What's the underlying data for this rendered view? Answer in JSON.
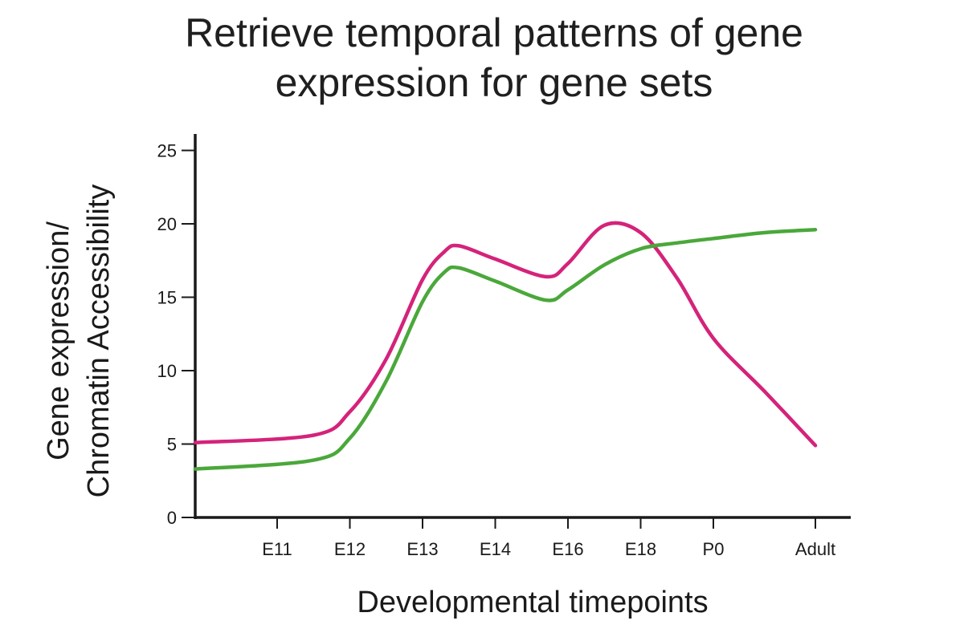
{
  "chart_data": {
    "type": "line",
    "title_lines": [
      "Retrieve temporal patterns of gene",
      "expression for gene sets"
    ],
    "xlabel": "Developmental timepoints",
    "ylabel_lines": [
      "Gene expression/",
      "Chromatin Accessibility"
    ],
    "categories": [
      "E11",
      "E12",
      "E13",
      "E14",
      "E16",
      "E18",
      "P0",
      "Adult"
    ],
    "y_ticks": [
      0,
      5,
      10,
      15,
      20,
      25
    ],
    "ylim": [
      0,
      27
    ],
    "grid": false,
    "legend": "none",
    "series": [
      {
        "color": "#d4237a",
        "x": [
          0,
          0.5,
          1,
          1.5,
          2,
          2.3,
          2.5,
          3,
          3.7,
          4,
          4.5,
          5,
          5.5,
          6,
          6.5,
          7
        ],
        "y": [
          5.1,
          5.6,
          7.2,
          10.8,
          16.2,
          18.1,
          18.5,
          17.6,
          16.4,
          17.3,
          19.9,
          19.4,
          16.3,
          12.2,
          8.6,
          4.9
        ]
      },
      {
        "color": "#4aa83a",
        "x": [
          0,
          0.5,
          1,
          1.5,
          2,
          2.3,
          2.5,
          3,
          3.7,
          4,
          4.5,
          5,
          5.5,
          6,
          6.5,
          7
        ],
        "y": [
          3.3,
          3.9,
          5.4,
          9.3,
          14.7,
          16.7,
          17.0,
          16.1,
          14.8,
          15.5,
          17.2,
          18.3,
          18.7,
          19.0,
          19.4,
          19.6
        ]
      }
    ]
  }
}
